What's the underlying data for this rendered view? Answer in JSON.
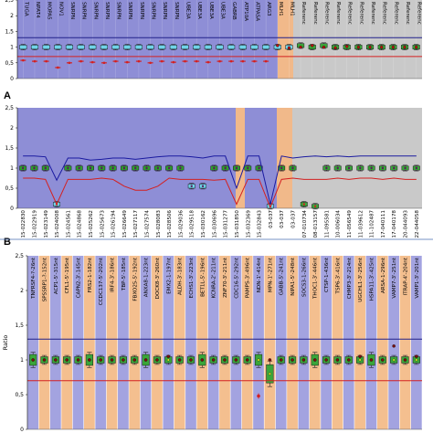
{
  "panel_labels": [
    "A",
    "B"
  ],
  "chart_data": [
    {
      "type": "box",
      "panel": "A-top",
      "ylim": [
        0,
        2.5
      ],
      "yticks": [
        "0",
        "0,5",
        "1",
        "1,5",
        "2",
        "2,5"
      ],
      "upper_threshold": 1.3,
      "lower_threshold": 0.7,
      "categories": [
        "TUGA",
        "NPAT4",
        "MOPA5",
        "NOV1",
        "SNRPN",
        "SNRPN",
        "SNRPN",
        "SNRPN",
        "SNRPN",
        "SNRPN",
        "SNRPN",
        "SNRPN",
        "SNRPN",
        "SNRPN",
        "UBE3A",
        "UBE3A",
        "UBE3A",
        "UBE3A",
        "GABRB",
        "ATP10A",
        "ATPASA",
        "ARG3",
        "MLH1",
        "MLH1",
        "Referenc",
        "Referenc",
        "Referenc",
        "Referenc",
        "Referenc",
        "Referenc",
        "Referenc",
        "Referenc",
        "Referenc",
        "Referenc",
        "Referenc"
      ],
      "values": [
        1.0,
        1.0,
        1.0,
        1.0,
        1.0,
        1.0,
        1.0,
        1.0,
        1.0,
        1.0,
        1.0,
        1.0,
        1.0,
        1.0,
        1.0,
        1.0,
        1.0,
        1.0,
        1.0,
        1.0,
        1.0,
        1.0,
        1.0,
        1.0,
        1.05,
        1.0,
        1.05,
        1.0,
        1.0,
        1.0,
        1.0,
        1.0,
        1.0,
        1.0,
        1.0
      ],
      "sample_values": [
        0.58,
        0.55,
        0.55,
        0.35,
        0.5,
        0.55,
        0.52,
        0.5,
        0.55,
        0.52,
        0.55,
        0.5,
        0.55,
        0.52,
        0.55,
        0.55,
        0.52,
        0.55,
        0.55,
        0.55,
        0.55,
        0.55,
        1.05,
        0.98,
        1.0,
        1.05,
        1.0,
        0.98,
        1.02,
        1.0,
        1.0,
        1.0,
        1.0,
        1.0,
        1.0
      ]
    },
    {
      "type": "box",
      "panel": "A-bottom",
      "ylim": [
        0,
        2.5
      ],
      "yticks": [
        "0",
        "0,5",
        "1",
        "1,5",
        "2",
        "2,5"
      ],
      "categories": [
        "15-022830",
        "15-022919",
        "15-023149",
        "15-024008",
        "15-024561",
        "15-024868",
        "15-025262",
        "15-025673",
        "15-026194",
        "15-026649",
        "15-027117",
        "15-027574",
        "15-028083",
        "15-028506",
        "15-029036",
        "15-029518",
        "15-030162",
        "15-030696",
        "15-031277",
        "15-031850",
        "15-032369",
        "15-032843",
        "03-037",
        "03-037",
        "03-037",
        "07-010734",
        "08-013157",
        "11-095581",
        "10-006034",
        "11-056549",
        "11-039612",
        "11-102487",
        "17-040111",
        "17-040178",
        "20-044093",
        "22-044058"
      ],
      "values": [
        1.0,
        1.0,
        1.0,
        0.1,
        1.0,
        1.0,
        1.0,
        1.0,
        1.0,
        1.0,
        1.0,
        1.0,
        1.0,
        1.0,
        1.0,
        0.55,
        0.55,
        1.0,
        1.0,
        1.0,
        1.0,
        1.0,
        0.05,
        1.0,
        1.0,
        0.1,
        0.05,
        1.0,
        1.0,
        1.0,
        1.0,
        1.0,
        1.0,
        1.0,
        1.0,
        1.0
      ],
      "upper_curve": [
        1.3,
        1.3,
        1.28,
        0.7,
        1.25,
        1.25,
        1.2,
        1.22,
        1.25,
        1.25,
        1.22,
        1.25,
        1.28,
        1.3,
        1.3,
        1.28,
        1.25,
        1.3,
        1.3,
        0.5,
        1.3,
        1.3,
        0.1,
        1.3,
        1.25,
        1.28,
        1.3,
        1.28,
        1.3,
        1.28,
        1.3,
        1.3,
        1.3,
        1.3,
        1.3,
        1.3
      ],
      "lower_curve": [
        0.75,
        0.75,
        0.72,
        0.1,
        0.72,
        0.72,
        0.72,
        0.75,
        0.72,
        0.55,
        0.45,
        0.45,
        0.55,
        0.75,
        0.72,
        0.72,
        0.72,
        0.7,
        0.72,
        0.1,
        0.72,
        0.72,
        0.02,
        0.72,
        0.75,
        0.72,
        0.72,
        0.72,
        0.75,
        0.72,
        0.75,
        0.75,
        0.72,
        0.75,
        0.72,
        0.72
      ]
    },
    {
      "type": "box",
      "panel": "B",
      "ylabel": "Ratio",
      "ylim": [
        0,
        2.5
      ],
      "yticks": [
        "0",
        "0,5",
        "1",
        "1,5",
        "2",
        "2,5"
      ],
      "upper_threshold": 1.3,
      "lower_threshold": 0.7,
      "categories": [
        "TNFRSF4-?-26nt",
        "SPSSRP1-?-152nt",
        "ACP1-5'-315nt",
        "CFL1-5'-195nt",
        "CAPN2-3'-145nt",
        "FRS2-1-182nt",
        "CCDC137-5'-202nt",
        "IRF4-3'-186nt",
        "TBP-5'-185nt",
        "FBXO25-5'-192nt",
        "ANXA8-1-223nt",
        "DOCK8-3'-260nt",
        "EMX2-1-197nt",
        "ALDH-3'-183nt",
        "ECHS1-3'-223nt",
        "BET1L-5'-196nt",
        "KCNRA-2'-211nt",
        "ZNF70-3'-211nt",
        "CDC16-5'-292nt",
        "PAMPS-3'-496nt",
        "NDN-1'-414nt",
        "MPN-1'-271nt",
        "GABB-5'-241nt",
        "NIPA1-5'-248nt",
        "SOCS3-1-266nt",
        "THOC1-3'-446nt",
        "CTSP-1-436nt",
        "TSP6-3'-416nt",
        "CHMP3-3'-214nt",
        "UGCHL1-3'-256nt",
        "HSPA11-3'-425nt",
        "ARSA-1-296nt",
        "VAMP7-3'-251nt",
        "ITRAP-4'-204nt",
        "VAMP1-3'-201nt"
      ],
      "values": [
        1.0,
        1.0,
        1.0,
        1.0,
        1.0,
        1.0,
        1.0,
        1.0,
        1.0,
        1.0,
        1.0,
        1.0,
        1.0,
        1.0,
        1.0,
        1.0,
        1.0,
        1.0,
        1.0,
        1.0,
        1.0,
        0.8,
        1.0,
        1.0,
        1.0,
        1.0,
        1.0,
        1.0,
        1.0,
        1.0,
        1.0,
        1.0,
        1.0,
        1.0,
        1.0
      ],
      "sample_values": [
        1.0,
        1.0,
        1.0,
        1.0,
        1.0,
        1.0,
        1.0,
        1.0,
        1.0,
        1.0,
        1.0,
        1.0,
        1.05,
        1.0,
        1.0,
        1.0,
        1.0,
        1.0,
        1.0,
        1.0,
        0.48,
        1.0,
        1.0,
        1.0,
        1.0,
        1.0,
        1.0,
        1.0,
        1.0,
        1.05,
        1.0,
        1.0,
        1.2,
        1.0,
        1.05
      ]
    }
  ]
}
